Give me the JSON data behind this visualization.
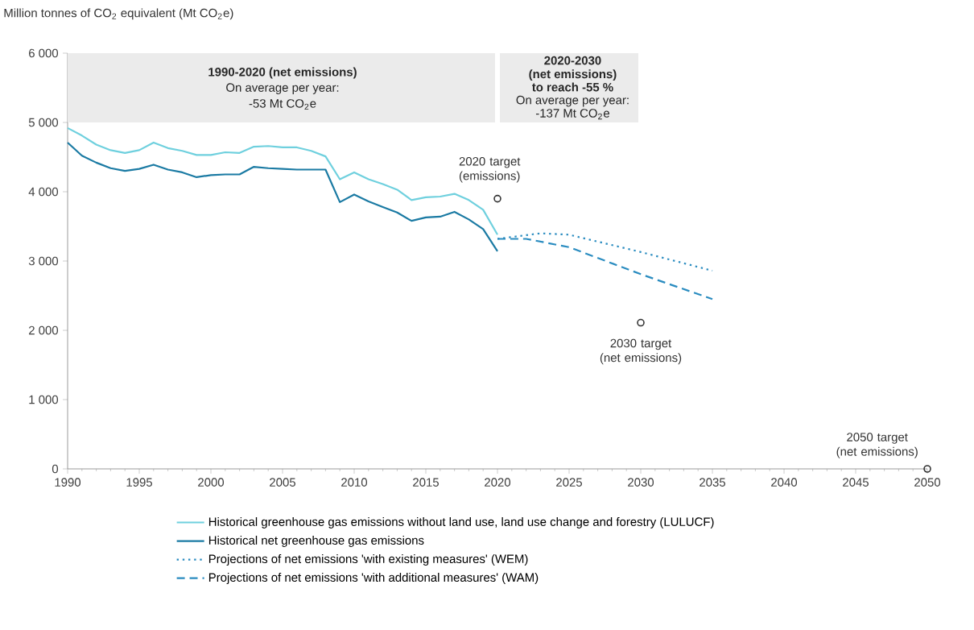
{
  "chart_data": {
    "type": "line",
    "ylabel": "Million tonnes of CO$_{2}$ equivalent (Mt CO$_{2}$e)",
    "xlim": [
      1990,
      2050
    ],
    "xticks": [
      1990,
      1995,
      2000,
      2005,
      2010,
      2015,
      2020,
      2025,
      2030,
      2035,
      2040,
      2045,
      2050
    ],
    "ylim": [
      0,
      6000
    ],
    "yticks": [
      0,
      {
        "value": 1000,
        "label": "1 000"
      },
      {
        "value": 2000,
        "label": "2 000"
      },
      {
        "value": 3000,
        "label": "3 000"
      },
      {
        "value": 4000,
        "label": "4 000"
      },
      {
        "value": 5000,
        "label": "5 000"
      },
      {
        "value": 6000,
        "label": "6 000"
      }
    ],
    "legend": "bottom",
    "grid": false,
    "bands": [
      {
        "axis": "x",
        "from": 1990,
        "to": 2020,
        "color": "#ebebeb"
      },
      {
        "axis": "x",
        "from": 2020,
        "to": 2030,
        "color": "#ebebeb"
      }
    ],
    "series": [
      {
        "name": "Historical greenhouse gas emissions without land use, land use change and forestry (LULUCF)",
        "color": "#6fd0de",
        "line_style": "solid",
        "marker": "none",
        "x": [
          1990,
          1991,
          1992,
          1993,
          1994,
          1995,
          1996,
          1997,
          1998,
          1999,
          2000,
          2001,
          2002,
          2003,
          2004,
          2005,
          2006,
          2007,
          2008,
          2009,
          2010,
          2011,
          2012,
          2013,
          2014,
          2015,
          2016,
          2017,
          2018,
          2019,
          2020
        ],
        "values": [
          4920,
          4810,
          4680,
          4600,
          4560,
          4600,
          4710,
          4630,
          4590,
          4530,
          4530,
          4570,
          4560,
          4650,
          4660,
          4640,
          4640,
          4590,
          4510,
          4180,
          4280,
          4180,
          4110,
          4030,
          3880,
          3920,
          3930,
          3970,
          3880,
          3740,
          3380
        ]
      },
      {
        "name": "Historical net greenhouse gas emissions",
        "color": "#1a7aa3",
        "line_style": "solid",
        "marker": "none",
        "x": [
          1990,
          1991,
          1992,
          1993,
          1994,
          1995,
          1996,
          1997,
          1998,
          1999,
          2000,
          2001,
          2002,
          2003,
          2004,
          2005,
          2006,
          2007,
          2008,
          2009,
          2010,
          2011,
          2012,
          2013,
          2014,
          2015,
          2016,
          2017,
          2018,
          2019,
          2020
        ],
        "values": [
          4710,
          4520,
          4420,
          4340,
          4300,
          4330,
          4390,
          4320,
          4280,
          4210,
          4240,
          4250,
          4250,
          4360,
          4340,
          4330,
          4320,
          4320,
          4320,
          3850,
          3960,
          3860,
          3780,
          3700,
          3580,
          3630,
          3640,
          3710,
          3600,
          3460,
          3140
        ]
      },
      {
        "name": "Projections of net emissions 'with existing measures' (WEM)",
        "color": "#2a8cc0",
        "line_style": "dotted",
        "marker": "none",
        "x": [
          2020,
          2023,
          2025,
          2030,
          2035
        ],
        "values": [
          3320,
          3400,
          3380,
          3130,
          2860
        ]
      },
      {
        "name": "Projections of net emissions 'with additional measures' (WAM)",
        "color": "#2a8cc0",
        "line_style": "dashed",
        "marker": "none",
        "x": [
          2020,
          2022,
          2025,
          2030,
          2035
        ],
        "values": [
          3320,
          3320,
          3200,
          2810,
          2450
        ]
      },
      {
        "type": "scatter",
        "color": "#333333",
        "marker": "circle",
        "x": [
          2020,
          2030,
          2050
        ],
        "values": [
          3900,
          2110,
          0
        ]
      }
    ],
    "annotations": [
      "1990-2020 (net emissions)",
      "On average per year:",
      "-53 Mt CO$_{2}$e",
      "2020-2030",
      "(net emissions)",
      "to reach -55 %",
      "On average per year:",
      "-137 Mt CO$_{2}$e",
      {
        "text": "2020 target (emissions)",
        "x": 2020,
        "y": 3900
      },
      {
        "text": "2030 target (net emissions)",
        "x": 2030,
        "y": 2110
      },
      {
        "text": "2050 target (net emissions)",
        "x": 2050,
        "y": 0
      }
    ]
  }
}
